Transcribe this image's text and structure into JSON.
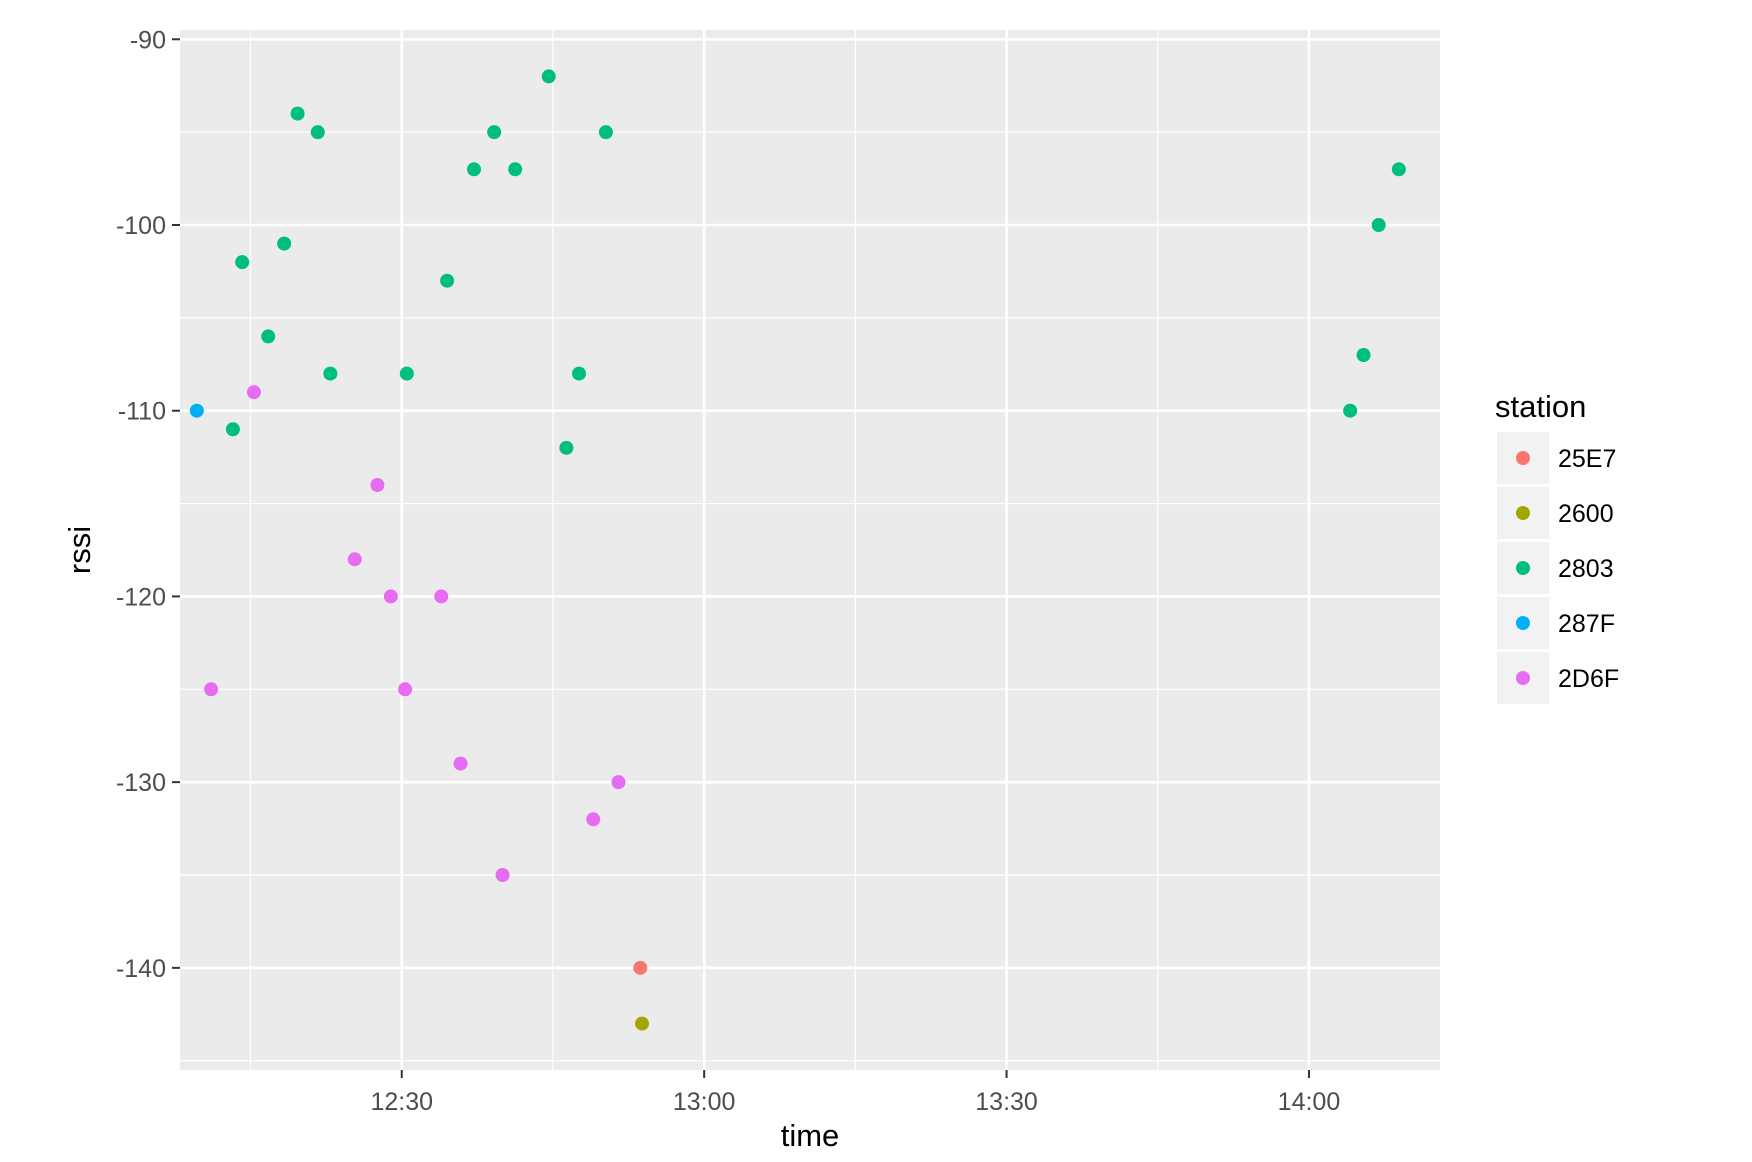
{
  "chart_data": {
    "type": "scatter",
    "title": "",
    "xlabel": "time",
    "ylabel": "rssi",
    "xlim": [
      "12:08",
      "14:13"
    ],
    "ylim": [
      -145.5,
      -89.5
    ],
    "x_ticks": [
      "12:30",
      "13:00",
      "13:30",
      "14:00"
    ],
    "y_ticks": [
      "-90",
      "-100",
      "-110",
      "-120",
      "-130",
      "-140"
    ],
    "grid": true,
    "legend": {
      "title": "station",
      "position": "right",
      "entries": [
        "25E7",
        "2600",
        "2803",
        "287F",
        "2D6F"
      ]
    },
    "series": [
      {
        "name": "25E7",
        "color": "#F8766D",
        "points": [
          {
            "x": "12:53:40",
            "y": -140
          }
        ]
      },
      {
        "name": "2600",
        "color": "#A3A500",
        "points": [
          {
            "x": "12:53:50",
            "y": -143
          }
        ]
      },
      {
        "name": "2803",
        "color": "#00BF7D",
        "points": [
          {
            "x": "12:13:15",
            "y": -111
          },
          {
            "x": "12:14:10",
            "y": -102
          },
          {
            "x": "12:16:45",
            "y": -106
          },
          {
            "x": "12:18:20",
            "y": -101
          },
          {
            "x": "12:19:40",
            "y": -94
          },
          {
            "x": "12:21:40",
            "y": -95
          },
          {
            "x": "12:22:55",
            "y": -108
          },
          {
            "x": "12:30:30",
            "y": -108
          },
          {
            "x": "12:34:30",
            "y": -103
          },
          {
            "x": "12:37:10",
            "y": -97
          },
          {
            "x": "12:39:10",
            "y": -95
          },
          {
            "x": "12:41:15",
            "y": -97
          },
          {
            "x": "12:44:35",
            "y": -92
          },
          {
            "x": "12:46:20",
            "y": -112
          },
          {
            "x": "12:47:35",
            "y": -108
          },
          {
            "x": "12:50:15",
            "y": -95
          },
          {
            "x": "14:04:05",
            "y": -110
          },
          {
            "x": "14:05:25",
            "y": -107
          },
          {
            "x": "14:06:55",
            "y": -100
          },
          {
            "x": "14:08:55",
            "y": -97
          }
        ]
      },
      {
        "name": "287F",
        "color": "#00B0F6",
        "points": [
          {
            "x": "12:09:40",
            "y": -110
          }
        ]
      },
      {
        "name": "2D6F",
        "color": "#E76BF3",
        "points": [
          {
            "x": "12:11:05",
            "y": -125
          },
          {
            "x": "12:15:20",
            "y": -109
          },
          {
            "x": "12:25:20",
            "y": -118
          },
          {
            "x": "12:27:35",
            "y": -114
          },
          {
            "x": "12:28:55",
            "y": -120
          },
          {
            "x": "12:30:20",
            "y": -125
          },
          {
            "x": "12:33:55",
            "y": -120
          },
          {
            "x": "12:35:50",
            "y": -129
          },
          {
            "x": "12:40:00",
            "y": -135
          },
          {
            "x": "12:49:00",
            "y": -132
          },
          {
            "x": "12:51:30",
            "y": -130
          }
        ]
      }
    ]
  }
}
